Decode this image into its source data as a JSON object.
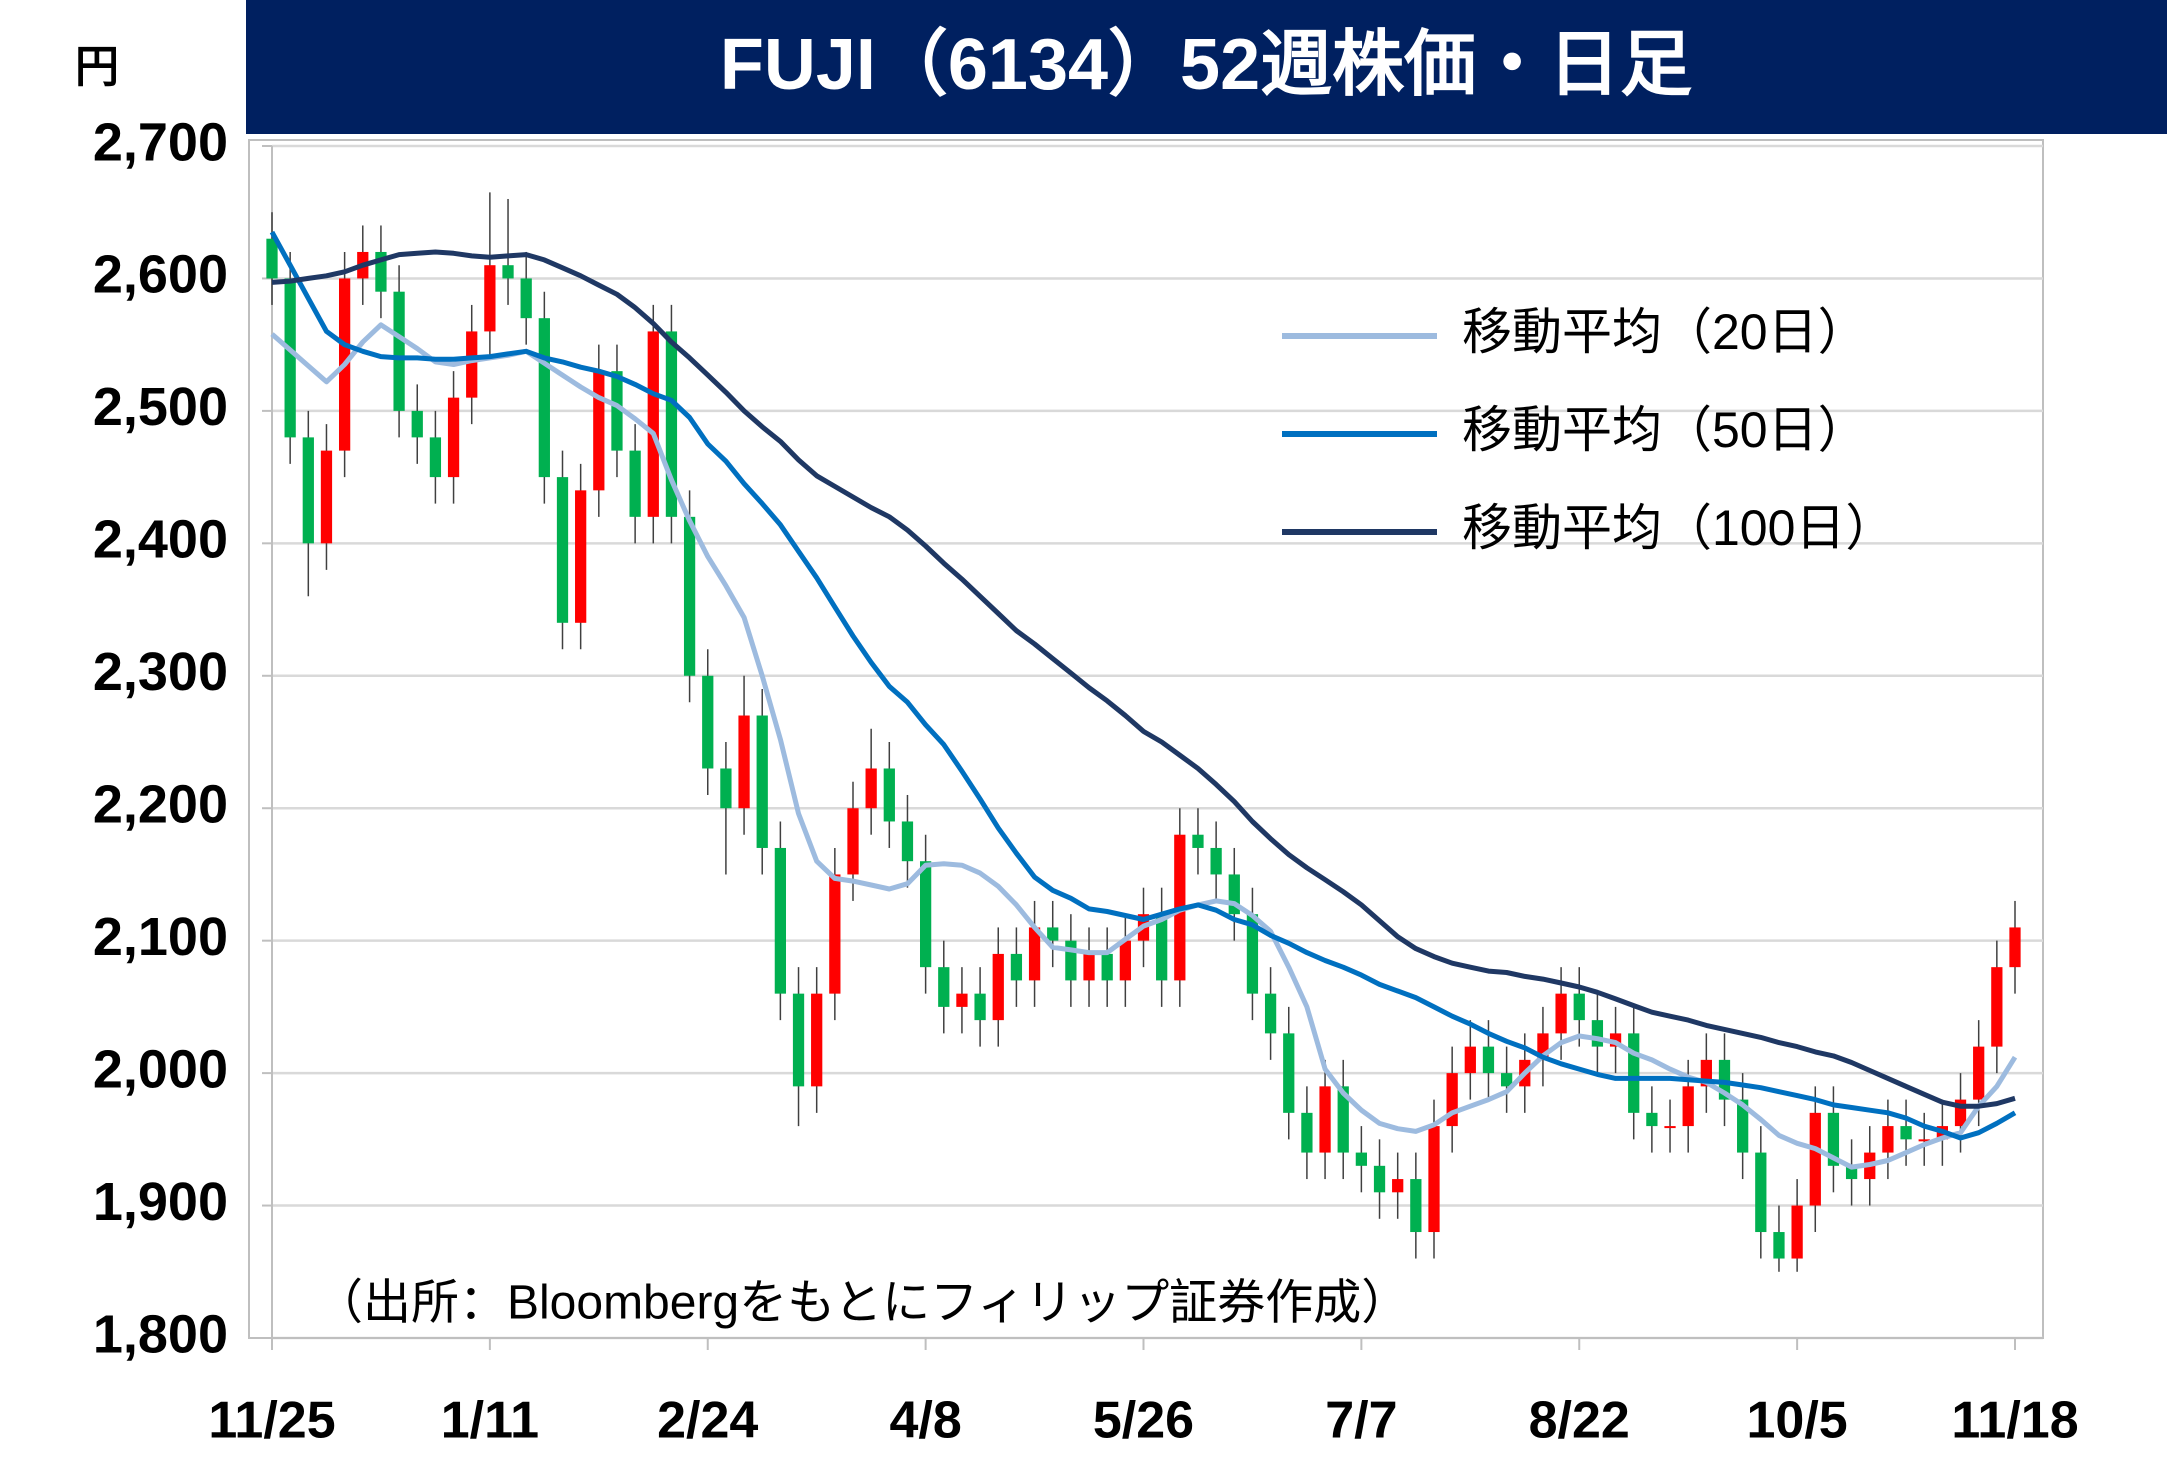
{
  "chart_data": {
    "type": "candlestick",
    "title": "FUJI（6134）52週株価・日足",
    "unit_label": "円",
    "annotation": "（出所：Bloombergをもとにフィリップ証券作成）",
    "categories": [
      "11/25",
      null,
      null,
      null,
      null,
      null,
      null,
      null,
      null,
      null,
      null,
      null,
      "1/11",
      null,
      null,
      null,
      null,
      null,
      null,
      null,
      null,
      null,
      null,
      null,
      "2/24",
      null,
      null,
      null,
      null,
      null,
      null,
      null,
      null,
      null,
      null,
      null,
      "4/8",
      null,
      null,
      null,
      null,
      null,
      null,
      null,
      null,
      null,
      null,
      null,
      "5/26",
      null,
      null,
      null,
      null,
      null,
      null,
      null,
      null,
      null,
      null,
      null,
      "7/7",
      null,
      null,
      null,
      null,
      null,
      null,
      null,
      null,
      null,
      null,
      null,
      "8/22",
      null,
      null,
      null,
      null,
      null,
      null,
      null,
      null,
      null,
      null,
      null,
      "10/5",
      null,
      null,
      null,
      null,
      null,
      null,
      null,
      null,
      null,
      null,
      null,
      "11/18"
    ],
    "open": [
      2630,
      2600,
      2480,
      2400,
      2470,
      2600,
      2620,
      2590,
      2500,
      2480,
      2450,
      2510,
      2560,
      2610,
      2600,
      2570,
      2450,
      2340,
      2440,
      2530,
      2470,
      2420,
      2560,
      2420,
      2300,
      2230,
      2200,
      2270,
      2170,
      2060,
      1990,
      2060,
      2150,
      2200,
      2230,
      2190,
      2160,
      2080,
      2050,
      2060,
      2040,
      2090,
      2070,
      2110,
      2100,
      2070,
      2090,
      2070,
      2100,
      2120,
      2070,
      2180,
      2170,
      2150,
      2120,
      2060,
      2030,
      1970,
      1940,
      1990,
      1940,
      1930,
      1910,
      1920,
      1880,
      1960,
      2000,
      2020,
      2000,
      1990,
      2010,
      2030,
      2060,
      2040,
      2020,
      2030,
      1970,
      1960,
      1960,
      1990,
      2010,
      1980,
      1940,
      1880,
      1860,
      1900,
      1970,
      1930,
      1920,
      1940,
      1960,
      1950,
      1950,
      1960,
      1980,
      2020,
      2080
    ],
    "high": [
      2650,
      2620,
      2500,
      2490,
      2620,
      2640,
      2640,
      2610,
      2520,
      2500,
      2530,
      2580,
      2665,
      2660,
      2620,
      2590,
      2470,
      2460,
      2550,
      2550,
      2490,
      2580,
      2580,
      2440,
      2320,
      2250,
      2300,
      2290,
      2190,
      2080,
      2080,
      2170,
      2220,
      2260,
      2250,
      2210,
      2180,
      2100,
      2080,
      2080,
      2110,
      2110,
      2130,
      2130,
      2120,
      2110,
      2110,
      2120,
      2140,
      2140,
      2200,
      2200,
      2190,
      2170,
      2140,
      2080,
      2050,
      1990,
      2010,
      2010,
      1960,
      1950,
      1940,
      1940,
      1980,
      2020,
      2040,
      2040,
      2020,
      2030,
      2050,
      2080,
      2080,
      2060,
      2050,
      2050,
      1990,
      1980,
      2010,
      2030,
      2030,
      2000,
      1960,
      1900,
      1920,
      1990,
      1990,
      1950,
      1960,
      1980,
      1980,
      1970,
      1980,
      2000,
      2040,
      2100,
      2130
    ],
    "low": [
      2580,
      2460,
      2360,
      2380,
      2450,
      2580,
      2570,
      2480,
      2460,
      2430,
      2430,
      2490,
      2540,
      2580,
      2550,
      2430,
      2320,
      2320,
      2420,
      2450,
      2400,
      2400,
      2400,
      2280,
      2210,
      2150,
      2180,
      2150,
      2040,
      1960,
      1970,
      2040,
      2130,
      2180,
      2170,
      2140,
      2060,
      2030,
      2030,
      2020,
      2020,
      2050,
      2050,
      2080,
      2050,
      2050,
      2050,
      2050,
      2080,
      2050,
      2050,
      2150,
      2130,
      2100,
      2040,
      2010,
      1950,
      1920,
      1920,
      1920,
      1910,
      1890,
      1890,
      1860,
      1860,
      1940,
      1980,
      1980,
      1970,
      1970,
      1990,
      2010,
      2020,
      2000,
      2000,
      1950,
      1940,
      1940,
      1940,
      1970,
      1960,
      1920,
      1860,
      1850,
      1850,
      1880,
      1910,
      1900,
      1900,
      1920,
      1930,
      1930,
      1930,
      1940,
      1960,
      2000,
      2060
    ],
    "close": [
      2600,
      2480,
      2400,
      2470,
      2600,
      2620,
      2590,
      2500,
      2480,
      2450,
      2510,
      2560,
      2610,
      2600,
      2570,
      2450,
      2340,
      2440,
      2530,
      2470,
      2420,
      2560,
      2420,
      2300,
      2230,
      2200,
      2270,
      2170,
      2060,
      1990,
      2060,
      2150,
      2200,
      2230,
      2190,
      2160,
      2080,
      2050,
      2060,
      2040,
      2090,
      2070,
      2110,
      2100,
      2070,
      2090,
      2070,
      2100,
      2120,
      2070,
      2180,
      2170,
      2150,
      2120,
      2060,
      2030,
      1970,
      1940,
      1990,
      1940,
      1930,
      1910,
      1920,
      1880,
      1960,
      2000,
      2020,
      2000,
      1990,
      2010,
      2030,
      2060,
      2040,
      2020,
      2030,
      1970,
      1960,
      1960,
      1990,
      2010,
      1980,
      1940,
      1880,
      1860,
      1900,
      1970,
      1930,
      1920,
      1940,
      1960,
      1950,
      1950,
      1960,
      1980,
      2020,
      2080,
      2110
    ],
    "up_color": "#ff0000",
    "down_color": "#00b050",
    "wick_color": "#404040",
    "series": [
      {
        "name": "移動平均（20日）",
        "color": "#9dbbdf",
        "values": [
          2558,
          2546,
          2534,
          2522,
          2535,
          2552,
          2565,
          2556,
          2547,
          2537,
          2535,
          2538,
          2540,
          2542,
          2545,
          2536,
          2527,
          2518,
          2510,
          2504,
          2494,
          2483,
          2448,
          2417,
          2390,
          2368,
          2344,
          2300,
          2252,
          2196,
          2160,
          2147,
          2145,
          2142,
          2139,
          2143,
          2157,
          2158,
          2157,
          2151,
          2141,
          2127,
          2110,
          2095,
          2093,
          2091,
          2091,
          2101,
          2111,
          2116,
          2123,
          2127,
          2130,
          2128,
          2119,
          2107,
          2080,
          2050,
          2003,
          1985,
          1972,
          1962,
          1958,
          1956,
          1961,
          1970,
          1975,
          1980,
          1986,
          2000,
          2013,
          2023,
          2028,
          2026,
          2023,
          2015,
          2010,
          2003,
          1997,
          1993,
          1985,
          1976,
          1965,
          1953,
          1947,
          1943,
          1936,
          1929,
          1931,
          1934,
          1940,
          1946,
          1951,
          1955,
          1975,
          1990,
          2012
        ]
      },
      {
        "name": "移動平均（50日）",
        "color": "#0070c0",
        "values": [
          2635,
          2610,
          2585,
          2560,
          2550,
          2545,
          2541,
          2540,
          2540,
          2539,
          2539,
          2540,
          2541,
          2543,
          2545,
          2540,
          2537,
          2533,
          2530,
          2526,
          2520,
          2513,
          2508,
          2495,
          2475,
          2462,
          2445,
          2430,
          2414,
          2394,
          2374,
          2352,
          2330,
          2310,
          2292,
          2280,
          2263,
          2248,
          2228,
          2207,
          2185,
          2166,
          2148,
          2138,
          2132,
          2124,
          2122,
          2119,
          2116,
          2120,
          2124,
          2127,
          2123,
          2116,
          2112,
          2104,
          2098,
          2091,
          2085,
          2080,
          2074,
          2067,
          2062,
          2057,
          2050,
          2043,
          2037,
          2030,
          2024,
          2019,
          2012,
          2007,
          2003,
          1999,
          1996,
          1996,
          1996,
          1996,
          1995,
          1994,
          1993,
          1991,
          1989,
          1986,
          1983,
          1980,
          1976,
          1974,
          1972,
          1970,
          1966,
          1960,
          1956,
          1951,
          1955,
          1962,
          1970
        ]
      },
      {
        "name": "移動平均（100日）",
        "color": "#1f3864",
        "values": [
          2597,
          2598,
          2600,
          2602,
          2605,
          2610,
          2614,
          2618,
          2619,
          2620,
          2619,
          2617,
          2616,
          2617,
          2618,
          2614,
          2608,
          2602,
          2595,
          2588,
          2578,
          2566,
          2552,
          2540,
          2527,
          2514,
          2500,
          2488,
          2477,
          2463,
          2451,
          2443,
          2435,
          2427,
          2420,
          2410,
          2398,
          2385,
          2373,
          2360,
          2347,
          2334,
          2324,
          2313,
          2302,
          2291,
          2281,
          2270,
          2258,
          2250,
          2240,
          2230,
          2218,
          2205,
          2190,
          2177,
          2165,
          2155,
          2146,
          2137,
          2127,
          2115,
          2103,
          2094,
          2088,
          2083,
          2080,
          2077,
          2076,
          2073,
          2071,
          2068,
          2065,
          2061,
          2056,
          2051,
          2046,
          2043,
          2040,
          2036,
          2033,
          2030,
          2027,
          2023,
          2020,
          2016,
          2013,
          2008,
          2002,
          1996,
          1990,
          1984,
          1978,
          1975,
          1975,
          1977,
          1981
        ]
      }
    ],
    "ylim": [
      1800,
      2700
    ],
    "yticks": [
      {
        "value": 1800,
        "label": "1,800"
      },
      {
        "value": 1900,
        "label": "1,900"
      },
      {
        "value": 2000,
        "label": "2,000"
      },
      {
        "value": 2100,
        "label": "2,100"
      },
      {
        "value": 2200,
        "label": "2,200"
      },
      {
        "value": 2300,
        "label": "2,300"
      },
      {
        "value": 2400,
        "label": "2,400"
      },
      {
        "value": 2500,
        "label": "2,500"
      },
      {
        "value": 2600,
        "label": "2,600"
      },
      {
        "value": 2700,
        "label": "2,700"
      }
    ],
    "grid": true,
    "legend": "upper right"
  }
}
